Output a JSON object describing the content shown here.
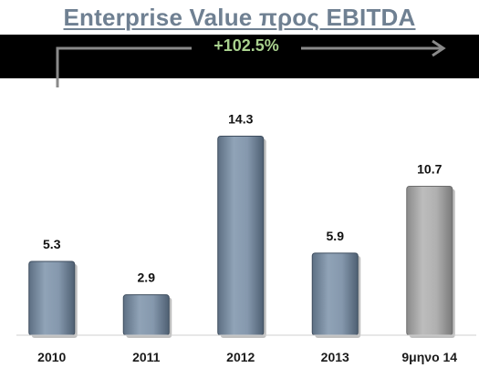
{
  "chart_data": {
    "type": "bar",
    "title": "Enterprise Value προς EBITDA",
    "categories": [
      "2010",
      "2011",
      "2012",
      "2013",
      "9μηνο 14"
    ],
    "values": [
      5.3,
      2.9,
      14.3,
      5.9,
      10.7
    ],
    "value_labels": [
      "5.3",
      "2.9",
      "14.3",
      "5.9",
      "10.7"
    ],
    "ylim": [
      0,
      17.8
    ],
    "grid": false,
    "annotation": "+102.5%",
    "colors": {
      "bar": "#7a8ea3",
      "bar_highlight": "#a6a6a6",
      "band": "#000000",
      "annotation": "#a9d18e",
      "title": "#6f8092"
    },
    "highlight_index": 4
  }
}
